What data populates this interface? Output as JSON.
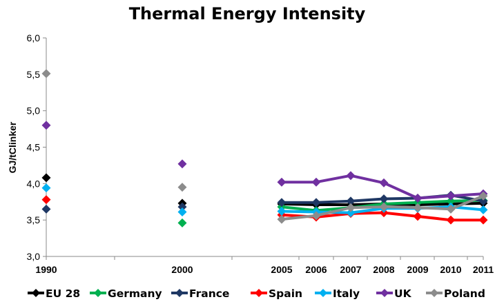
{
  "chart_data": {
    "type": "line",
    "title": "Thermal Energy Intensity",
    "ylabel": "GJ/tClinker",
    "xlabel": "",
    "ylim": [
      3.0,
      6.0
    ],
    "yticks": [
      "3,0",
      "3,5",
      "4,0",
      "4,5",
      "5,0",
      "5,5",
      "6,0"
    ],
    "x_categories": [
      "1990",
      "2000",
      "2005",
      "2006",
      "2007",
      "2008",
      "2009",
      "2010",
      "2011"
    ],
    "grid": false,
    "legend_position": "bottom",
    "series": [
      {
        "name": "EU 28",
        "color": "#000000",
        "values": [
          4.08,
          3.73,
          3.72,
          3.71,
          3.71,
          3.72,
          3.71,
          3.72,
          3.73
        ]
      },
      {
        "name": "Germany",
        "color": "#00b050",
        "values": [
          null,
          3.46,
          3.68,
          3.63,
          3.67,
          3.72,
          3.74,
          3.76,
          3.77
        ]
      },
      {
        "name": "France",
        "color": "#1f3864",
        "values": [
          3.65,
          3.68,
          3.74,
          3.74,
          3.76,
          3.79,
          3.8,
          3.84,
          3.76
        ]
      },
      {
        "name": "Spain",
        "color": "#ff0000",
        "values": [
          3.78,
          null,
          3.57,
          3.54,
          3.59,
          3.6,
          3.55,
          3.5,
          3.5
        ]
      },
      {
        "name": "Italy",
        "color": "#00b0f0",
        "values": [
          3.94,
          3.61,
          3.62,
          3.61,
          3.6,
          3.66,
          3.66,
          3.68,
          3.64
        ]
      },
      {
        "name": "UK",
        "color": "#7030a0",
        "values": [
          4.8,
          4.27,
          4.02,
          4.02,
          4.11,
          4.01,
          3.8,
          3.83,
          3.86
        ]
      },
      {
        "name": "Poland",
        "color": "#8c8c8c",
        "values": [
          5.51,
          3.95,
          3.51,
          3.56,
          3.67,
          3.68,
          3.67,
          3.65,
          3.83
        ]
      }
    ]
  }
}
